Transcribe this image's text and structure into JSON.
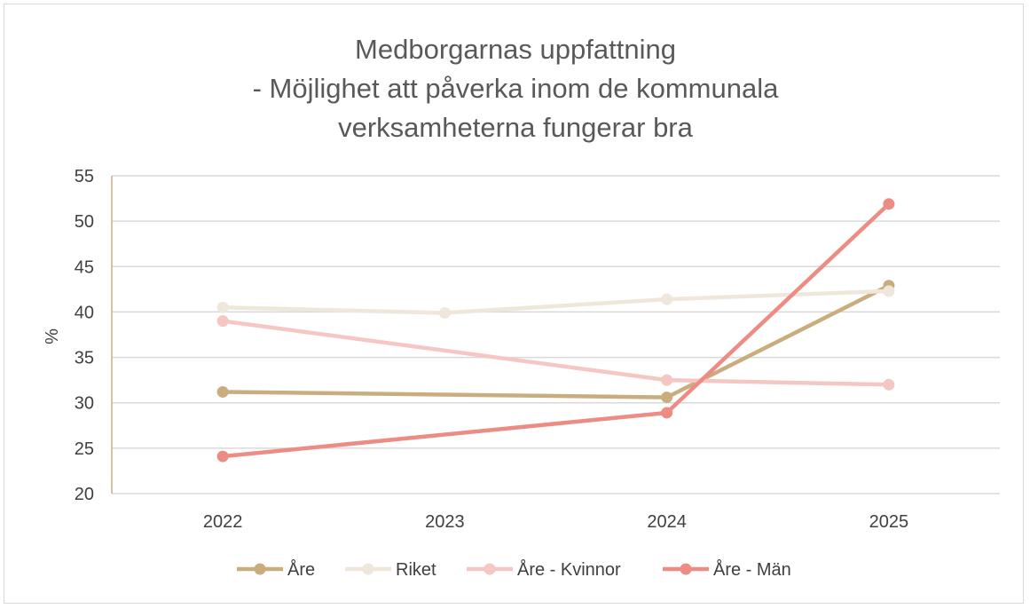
{
  "chart_data": {
    "type": "line",
    "title_lines": [
      "Medborgarnas uppfattning",
      "- Möjlighet att påverka inom de kommunala",
      "verksamheterna fungerar bra"
    ],
    "xlabel": "",
    "ylabel": "%",
    "x": [
      "2022",
      "2023",
      "2024",
      "2025"
    ],
    "ylim": [
      20,
      55
    ],
    "yticks": [
      20,
      25,
      30,
      35,
      40,
      45,
      50,
      55
    ],
    "grid": true,
    "legend_position": "bottom",
    "series": [
      {
        "name": "Åre",
        "color": "#c9ad7f",
        "values": [
          31.2,
          null,
          30.6,
          42.9
        ]
      },
      {
        "name": "Riket",
        "color": "#efe6dc",
        "values": [
          40.5,
          39.9,
          41.4,
          42.3
        ]
      },
      {
        "name": "Åre - Kvinnor",
        "color": "#f4c7c3",
        "values": [
          39.0,
          null,
          32.5,
          32.0
        ]
      },
      {
        "name": "Åre - Män",
        "color": "#ec8c84",
        "values": [
          24.1,
          null,
          28.9,
          51.9
        ]
      }
    ]
  }
}
